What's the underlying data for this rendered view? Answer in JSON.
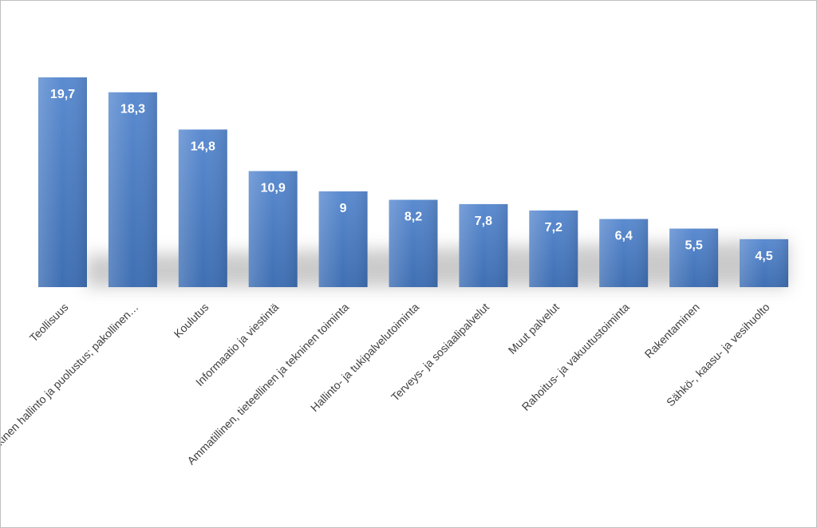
{
  "chart_data": {
    "type": "bar",
    "title": "",
    "xlabel": "",
    "ylabel": "",
    "ylim": [
      0,
      21
    ],
    "grid": false,
    "legend": "none",
    "categories": [
      "Teollisuus",
      "Julkinen hallinto ja puolustus; pakollinen…",
      "Koulutus",
      "Informaatio ja viestintä",
      "Ammatillinen, tieteellinen ja tekninen toiminta",
      "Hallinto- ja tukipalvelutoiminta",
      "Terveys- ja sosiaalipalvelut",
      "Muut palvelut",
      "Rahoitus- ja vakuutustoiminta",
      "Rakentaminen",
      "Sähkö-, kaasu- ja vesihuolto"
    ],
    "values": [
      19.7,
      18.3,
      14.8,
      10.9,
      9,
      8.2,
      7.8,
      7.2,
      6.4,
      5.5,
      4.5
    ],
    "data_labels": [
      "19,7",
      "18,3",
      "14,8",
      "10,9",
      "9",
      "8,2",
      "7,8",
      "7,2",
      "6,4",
      "5,5",
      "4,5"
    ],
    "colors": {
      "bar_top": "#5b8bd0",
      "bar_bottom": "#3f6fb3",
      "label_text": "#ffffff",
      "axis_text": "#404040"
    }
  }
}
